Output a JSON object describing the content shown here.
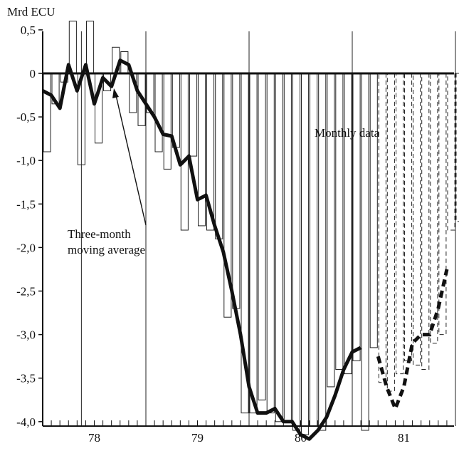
{
  "chart_data": {
    "type": "bar",
    "ylabel": "Mrd ECU",
    "ylim": [
      -4.0,
      0.5
    ],
    "yticks": [
      "0,5",
      "0",
      "-0,5",
      "-1,0",
      "-1,5",
      "-2,0",
      "-2,5",
      "-3,0",
      "-3,5",
      "-4,0"
    ],
    "ytick_values": [
      0.5,
      0,
      -0.5,
      -1.0,
      -1.5,
      -2.0,
      -2.5,
      -3.0,
      -3.5,
      -4.0
    ],
    "x_start": 1977.5,
    "x_end": 1981.6,
    "year_labels": [
      {
        "year": 1978,
        "label": "78"
      },
      {
        "year": 1979,
        "label": "79"
      },
      {
        "year": 1980,
        "label": "80"
      },
      {
        "year": 1981,
        "label": "81"
      }
    ],
    "annotations": [
      {
        "text": "Monthly data",
        "target": "bars"
      },
      {
        "lines": [
          "Three-month",
          "moving average"
        ],
        "target": "line"
      }
    ],
    "series": [
      {
        "kind": "monthly_bars",
        "x": [
          1977.5,
          1977.583,
          1977.667,
          1977.75,
          1977.833,
          1977.917,
          1978.0,
          1978.083,
          1978.167,
          1978.25,
          1978.333,
          1978.417,
          1978.5,
          1978.583,
          1978.667,
          1978.75,
          1978.833,
          1978.917,
          1979.0,
          1979.083,
          1979.167,
          1979.25,
          1979.333,
          1979.417,
          1979.5,
          1979.583,
          1979.667,
          1979.75,
          1979.833,
          1979.917,
          1980.0,
          1980.083,
          1980.167,
          1980.25,
          1980.333,
          1980.417,
          1980.5,
          1980.583,
          1980.667,
          1980.75,
          1980.833,
          1980.917,
          1981.0,
          1981.083,
          1981.167,
          1981.25,
          1981.333,
          1981.417,
          1981.5
        ],
        "values": [
          -0.9,
          -0.35,
          -0.1,
          0.6,
          -1.05,
          0.6,
          -0.8,
          -0.2,
          0.3,
          0.25,
          -0.45,
          -0.6,
          -0.45,
          -0.9,
          -1.1,
          -0.85,
          -1.8,
          -0.95,
          -1.75,
          -1.8,
          -1.9,
          -2.8,
          -2.7,
          -3.9,
          -3.9,
          -3.75,
          -3.9,
          -4.0,
          -4.0,
          -4.1,
          -4.15,
          -4.05,
          -4.1,
          -3.6,
          -3.4,
          -3.45,
          -3.3,
          -4.1,
          -3.15,
          -3.55,
          -3.65,
          -3.45,
          -3.3,
          -3.35,
          -3.4,
          -3.1,
          -3.0,
          -1.8,
          -1.7
        ],
        "projected_from": 1980.75
      },
      {
        "kind": "moving_average",
        "x": [
          1977.5,
          1977.583,
          1977.667,
          1977.75,
          1977.833,
          1977.917,
          1978.0,
          1978.083,
          1978.167,
          1978.25,
          1978.333,
          1978.417,
          1978.5,
          1978.583,
          1978.667,
          1978.75,
          1978.833,
          1978.917,
          1979.0,
          1979.083,
          1979.167,
          1979.25,
          1979.333,
          1979.417,
          1979.5,
          1979.583,
          1979.667,
          1979.75,
          1979.833,
          1979.917,
          1980.0,
          1980.083,
          1980.167,
          1980.25,
          1980.333,
          1980.417,
          1980.5,
          1980.583,
          1980.667,
          1980.75
        ],
        "values": [
          -0.2,
          -0.25,
          -0.4,
          0.1,
          -0.2,
          0.1,
          -0.35,
          -0.05,
          -0.15,
          0.15,
          0.1,
          -0.2,
          -0.35,
          -0.5,
          -0.7,
          -0.72,
          -1.05,
          -0.95,
          -1.45,
          -1.4,
          -1.75,
          -2.05,
          -2.5,
          -3.0,
          -3.6,
          -3.9,
          -3.9,
          -3.85,
          -4.0,
          -4.0,
          -4.15,
          -4.2,
          -4.1,
          -3.95,
          -3.7,
          -3.4,
          -3.2,
          -3.15,
          null,
          null
        ],
        "projected": {
          "x": [
            1980.75,
            1980.833,
            1980.917,
            1981.0,
            1981.083,
            1981.167,
            1981.25,
            1981.333,
            1981.417
          ],
          "values": [
            -3.25,
            -3.6,
            -3.85,
            -3.6,
            -3.1,
            -3.0,
            -3.0,
            -2.7,
            -2.25
          ]
        }
      }
    ],
    "grid_vertical_years": [
      1977.875,
      1978.5,
      1979.5,
      1980.5,
      1981.5
    ]
  }
}
